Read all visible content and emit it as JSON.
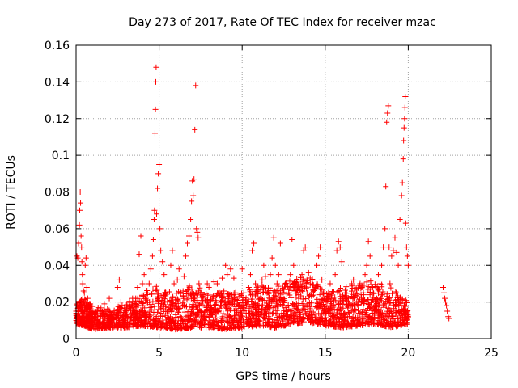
{
  "chart_data": {
    "type": "scatter",
    "title": "Day 273 of 2017, Rate Of TEC Index for receiver mzac",
    "xlabel": "GPS time / hours",
    "ylabel": "ROTI / TECUs",
    "xlim": [
      0,
      25
    ],
    "ylim": [
      0,
      0.16
    ],
    "xticks": [
      "0",
      "5",
      "10",
      "15",
      "20",
      "25"
    ],
    "yticks": [
      "0",
      "0.02",
      "0.04",
      "0.06",
      "0.08",
      "0.1",
      "0.12",
      "0.14",
      "0.16"
    ],
    "grid": true,
    "legend": "none",
    "marker": "+",
    "color": "#ff0000",
    "series": [
      {
        "points": [
          [
            0.0,
            0.015
          ],
          [
            0.05,
            0.045
          ],
          [
            0.1,
            0.044
          ],
          [
            0.15,
            0.052
          ],
          [
            0.2,
            0.062
          ],
          [
            0.22,
            0.07
          ],
          [
            0.25,
            0.08
          ],
          [
            0.27,
            0.074
          ],
          [
            0.3,
            0.056
          ],
          [
            0.33,
            0.05
          ],
          [
            0.35,
            0.042
          ],
          [
            0.38,
            0.035
          ],
          [
            0.4,
            0.03
          ],
          [
            0.45,
            0.026
          ],
          [
            0.5,
            0.025
          ],
          [
            0.55,
            0.04
          ],
          [
            0.6,
            0.044
          ],
          [
            0.65,
            0.028
          ],
          [
            0.7,
            0.022
          ],
          [
            0.75,
            0.018
          ],
          [
            0.8,
            0.015
          ],
          [
            0.9,
            0.012
          ],
          [
            1.0,
            0.011
          ],
          [
            1.1,
            0.013
          ],
          [
            1.2,
            0.01
          ],
          [
            1.3,
            0.012
          ],
          [
            1.4,
            0.009
          ],
          [
            1.5,
            0.015
          ],
          [
            1.6,
            0.011
          ],
          [
            1.7,
            0.019
          ],
          [
            1.8,
            0.013
          ],
          [
            1.9,
            0.01
          ],
          [
            2.0,
            0.022
          ],
          [
            2.1,
            0.012
          ],
          [
            2.2,
            0.009
          ],
          [
            2.3,
            0.014
          ],
          [
            2.4,
            0.011
          ],
          [
            2.5,
            0.028
          ],
          [
            2.6,
            0.032
          ],
          [
            2.7,
            0.02
          ],
          [
            2.8,
            0.012
          ],
          [
            2.9,
            0.01
          ],
          [
            3.0,
            0.015
          ],
          [
            3.1,
            0.012
          ],
          [
            3.2,
            0.018
          ],
          [
            3.3,
            0.011
          ],
          [
            3.4,
            0.022
          ],
          [
            3.5,
            0.014
          ],
          [
            3.6,
            0.012
          ],
          [
            3.7,
            0.028
          ],
          [
            3.8,
            0.046
          ],
          [
            3.9,
            0.056
          ],
          [
            4.0,
            0.03
          ],
          [
            4.1,
            0.035
          ],
          [
            4.2,
            0.022
          ],
          [
            4.3,
            0.02
          ],
          [
            4.4,
            0.03
          ],
          [
            4.5,
            0.038
          ],
          [
            4.6,
            0.045
          ],
          [
            4.65,
            0.054
          ],
          [
            4.7,
            0.065
          ],
          [
            4.72,
            0.07
          ],
          [
            4.75,
            0.112
          ],
          [
            4.78,
            0.125
          ],
          [
            4.8,
            0.14
          ],
          [
            4.82,
            0.148
          ],
          [
            4.85,
            0.068
          ],
          [
            4.9,
            0.082
          ],
          [
            4.95,
            0.09
          ],
          [
            5.0,
            0.095
          ],
          [
            5.05,
            0.06
          ],
          [
            5.1,
            0.048
          ],
          [
            5.2,
            0.042
          ],
          [
            5.3,
            0.035
          ],
          [
            5.4,
            0.025
          ],
          [
            5.5,
            0.02
          ],
          [
            5.6,
            0.015
          ],
          [
            5.7,
            0.04
          ],
          [
            5.8,
            0.048
          ],
          [
            5.9,
            0.03
          ],
          [
            6.0,
            0.02
          ],
          [
            6.1,
            0.032
          ],
          [
            6.2,
            0.038
          ],
          [
            6.3,
            0.025
          ],
          [
            6.4,
            0.018
          ],
          [
            6.5,
            0.034
          ],
          [
            6.6,
            0.045
          ],
          [
            6.7,
            0.052
          ],
          [
            6.8,
            0.056
          ],
          [
            6.9,
            0.065
          ],
          [
            6.95,
            0.075
          ],
          [
            7.0,
            0.086
          ],
          [
            7.05,
            0.078
          ],
          [
            7.1,
            0.087
          ],
          [
            7.15,
            0.114
          ],
          [
            7.2,
            0.138
          ],
          [
            7.25,
            0.06
          ],
          [
            7.3,
            0.058
          ],
          [
            7.35,
            0.055
          ],
          [
            7.4,
            0.03
          ],
          [
            7.5,
            0.025
          ],
          [
            7.6,
            0.02
          ],
          [
            7.7,
            0.024
          ],
          [
            7.8,
            0.015
          ],
          [
            7.9,
            0.03
          ],
          [
            8.0,
            0.028
          ],
          [
            8.1,
            0.018
          ],
          [
            8.2,
            0.022
          ],
          [
            8.3,
            0.031
          ],
          [
            8.4,
            0.016
          ],
          [
            8.5,
            0.03
          ],
          [
            8.6,
            0.025
          ],
          [
            8.7,
            0.02
          ],
          [
            8.8,
            0.033
          ],
          [
            8.9,
            0.026
          ],
          [
            9.0,
            0.04
          ],
          [
            9.1,
            0.035
          ],
          [
            9.2,
            0.02
          ],
          [
            9.3,
            0.038
          ],
          [
            9.4,
            0.022
          ],
          [
            9.5,
            0.033
          ],
          [
            9.6,
            0.025
          ],
          [
            9.7,
            0.02
          ],
          [
            9.8,
            0.018
          ],
          [
            9.9,
            0.015
          ],
          [
            10.0,
            0.038
          ],
          [
            10.1,
            0.025
          ],
          [
            10.2,
            0.02
          ],
          [
            10.3,
            0.02
          ],
          [
            10.4,
            0.028
          ],
          [
            10.5,
            0.035
          ],
          [
            10.6,
            0.048
          ],
          [
            10.7,
            0.052
          ],
          [
            10.8,
            0.03
          ],
          [
            10.9,
            0.025
          ],
          [
            11.0,
            0.018
          ],
          [
            11.1,
            0.022
          ],
          [
            11.2,
            0.032
          ],
          [
            11.3,
            0.04
          ],
          [
            11.4,
            0.034
          ],
          [
            11.5,
            0.025
          ],
          [
            11.6,
            0.02
          ],
          [
            11.7,
            0.035
          ],
          [
            11.8,
            0.044
          ],
          [
            11.9,
            0.055
          ],
          [
            12.0,
            0.04
          ],
          [
            12.1,
            0.03
          ],
          [
            12.2,
            0.035
          ],
          [
            12.3,
            0.052
          ],
          [
            12.4,
            0.025
          ],
          [
            12.5,
            0.02
          ],
          [
            12.6,
            0.03
          ],
          [
            12.7,
            0.018
          ],
          [
            12.8,
            0.025
          ],
          [
            12.9,
            0.035
          ],
          [
            13.0,
            0.054
          ],
          [
            13.1,
            0.04
          ],
          [
            13.2,
            0.03
          ],
          [
            13.3,
            0.025
          ],
          [
            13.4,
            0.022
          ],
          [
            13.5,
            0.028
          ],
          [
            13.6,
            0.035
          ],
          [
            13.7,
            0.048
          ],
          [
            13.8,
            0.05
          ],
          [
            13.9,
            0.032
          ],
          [
            14.0,
            0.036
          ],
          [
            14.1,
            0.03
          ],
          [
            14.2,
            0.032
          ],
          [
            14.3,
            0.025
          ],
          [
            14.4,
            0.028
          ],
          [
            14.5,
            0.04
          ],
          [
            14.6,
            0.045
          ],
          [
            14.7,
            0.05
          ],
          [
            14.8,
            0.032
          ],
          [
            14.9,
            0.025
          ],
          [
            15.0,
            0.02
          ],
          [
            15.1,
            0.018
          ],
          [
            15.2,
            0.025
          ],
          [
            15.3,
            0.03
          ],
          [
            15.4,
            0.022
          ],
          [
            15.5,
            0.02
          ],
          [
            15.6,
            0.035
          ],
          [
            15.7,
            0.048
          ],
          [
            15.8,
            0.053
          ],
          [
            15.9,
            0.05
          ],
          [
            16.0,
            0.042
          ],
          [
            16.1,
            0.02
          ],
          [
            16.2,
            0.025
          ],
          [
            16.3,
            0.022
          ],
          [
            16.4,
            0.018
          ],
          [
            16.5,
            0.02
          ],
          [
            16.6,
            0.03
          ],
          [
            16.7,
            0.032
          ],
          [
            16.8,
            0.025
          ],
          [
            16.9,
            0.02
          ],
          [
            17.0,
            0.018
          ],
          [
            17.1,
            0.03
          ],
          [
            17.2,
            0.028
          ],
          [
            17.3,
            0.025
          ],
          [
            17.4,
            0.035
          ],
          [
            17.5,
            0.04
          ],
          [
            17.6,
            0.053
          ],
          [
            17.7,
            0.045
          ],
          [
            17.8,
            0.028
          ],
          [
            17.9,
            0.025
          ],
          [
            18.0,
            0.02
          ],
          [
            18.1,
            0.022
          ],
          [
            18.2,
            0.035
          ],
          [
            18.3,
            0.03
          ],
          [
            18.4,
            0.04
          ],
          [
            18.5,
            0.05
          ],
          [
            18.6,
            0.06
          ],
          [
            18.65,
            0.083
          ],
          [
            18.7,
            0.118
          ],
          [
            18.75,
            0.123
          ],
          [
            18.8,
            0.127
          ],
          [
            18.85,
            0.05
          ],
          [
            18.9,
            0.03
          ],
          [
            19.0,
            0.045
          ],
          [
            19.1,
            0.048
          ],
          [
            19.2,
            0.055
          ],
          [
            19.3,
            0.047
          ],
          [
            19.4,
            0.04
          ],
          [
            19.5,
            0.065
          ],
          [
            19.6,
            0.078
          ],
          [
            19.65,
            0.085
          ],
          [
            19.7,
            0.098
          ],
          [
            19.72,
            0.108
          ],
          [
            19.75,
            0.115
          ],
          [
            19.78,
            0.12
          ],
          [
            19.8,
            0.126
          ],
          [
            19.82,
            0.132
          ],
          [
            19.85,
            0.063
          ],
          [
            19.9,
            0.05
          ],
          [
            19.95,
            0.045
          ],
          [
            20.0,
            0.04
          ],
          [
            19.9,
            0.02
          ],
          [
            20.0,
            0.012
          ],
          [
            22.1,
            0.028
          ],
          [
            22.15,
            0.025
          ],
          [
            22.2,
            0.022
          ],
          [
            22.25,
            0.02
          ],
          [
            22.3,
            0.018
          ],
          [
            22.35,
            0.015
          ],
          [
            22.4,
            0.012
          ],
          [
            22.45,
            0.011
          ]
        ]
      }
    ],
    "band": {
      "description_free_cloud": [
        [
          0.0,
          0.008,
          0.02
        ],
        [
          0.5,
          0.007,
          0.022
        ],
        [
          1.0,
          0.005,
          0.018
        ],
        [
          2.0,
          0.006,
          0.016
        ],
        [
          3.0,
          0.006,
          0.02
        ],
        [
          4.0,
          0.007,
          0.025
        ],
        [
          5.0,
          0.006,
          0.03
        ],
        [
          6.0,
          0.005,
          0.025
        ],
        [
          7.0,
          0.006,
          0.03
        ],
        [
          8.0,
          0.006,
          0.025
        ],
        [
          9.0,
          0.005,
          0.025
        ],
        [
          10.0,
          0.006,
          0.025
        ],
        [
          11.0,
          0.007,
          0.03
        ],
        [
          12.0,
          0.006,
          0.028
        ],
        [
          13.0,
          0.008,
          0.032
        ],
        [
          14.0,
          0.009,
          0.035
        ],
        [
          15.0,
          0.007,
          0.025
        ],
        [
          16.0,
          0.006,
          0.028
        ],
        [
          17.0,
          0.007,
          0.03
        ],
        [
          18.0,
          0.008,
          0.032
        ],
        [
          19.0,
          0.006,
          0.028
        ],
        [
          20.0,
          0.008,
          0.02
        ]
      ]
    }
  }
}
